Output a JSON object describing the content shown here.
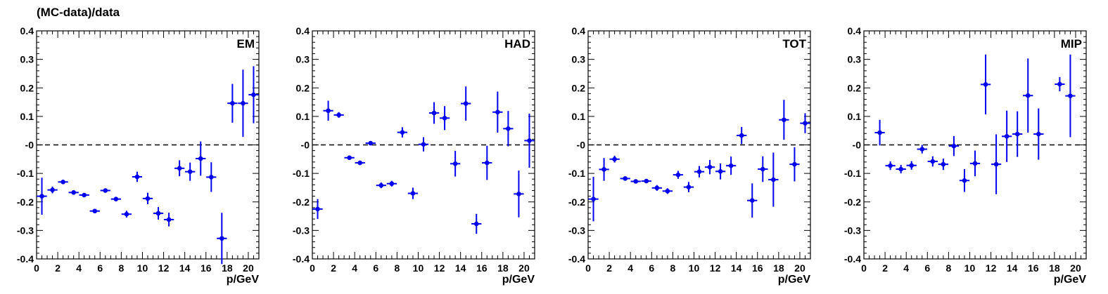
{
  "figure": {
    "ylabel": "(MC-data)/data",
    "xlabel": "p/GeV"
  },
  "colors": {
    "marker": "#0000ee",
    "axis": "#000000",
    "reference_line": "#000000"
  },
  "chart_data": [
    {
      "type": "scatter",
      "panel_label": "EM",
      "xlabel": "p/GeV",
      "ylabel": "(MC-data)/data",
      "xlim": [
        0,
        21
      ],
      "ylim": [
        -0.4,
        0.4
      ],
      "x_ticks": [
        "0",
        "2",
        "4",
        "6",
        "8",
        "10",
        "12",
        "14",
        "16",
        "18",
        "20"
      ],
      "y_ticks": [
        "-0.4",
        "-0.3",
        "-0.2",
        "-0.1",
        "-0",
        "0.1",
        "0.2",
        "0.3",
        "0.4"
      ],
      "reference_line": 0,
      "points": [
        {
          "x": 0.5,
          "y": -0.18,
          "err": 0.065
        },
        {
          "x": 1.5,
          "y": -0.158,
          "err": 0.012
        },
        {
          "x": 2.5,
          "y": -0.13,
          "err": 0.006
        },
        {
          "x": 3.5,
          "y": -0.167,
          "err": 0.006
        },
        {
          "x": 4.5,
          "y": -0.176,
          "err": 0.006
        },
        {
          "x": 5.5,
          "y": -0.232,
          "err": 0.005
        },
        {
          "x": 6.5,
          "y": -0.16,
          "err": 0.006
        },
        {
          "x": 7.5,
          "y": -0.19,
          "err": 0.008
        },
        {
          "x": 8.5,
          "y": -0.243,
          "err": 0.012
        },
        {
          "x": 9.5,
          "y": -0.112,
          "err": 0.018
        },
        {
          "x": 10.5,
          "y": -0.188,
          "err": 0.02
        },
        {
          "x": 11.5,
          "y": -0.24,
          "err": 0.022
        },
        {
          "x": 12.5,
          "y": -0.262,
          "err": 0.024
        },
        {
          "x": 13.5,
          "y": -0.082,
          "err": 0.028
        },
        {
          "x": 14.5,
          "y": -0.094,
          "err": 0.032
        },
        {
          "x": 15.5,
          "y": -0.048,
          "err": 0.06
        },
        {
          "x": 16.5,
          "y": -0.113,
          "err": 0.052
        },
        {
          "x": 17.5,
          "y": -0.328,
          "err": 0.09
        },
        {
          "x": 18.5,
          "y": 0.146,
          "err": 0.068
        },
        {
          "x": 19.5,
          "y": 0.146,
          "err": 0.118
        },
        {
          "x": 20.5,
          "y": 0.176,
          "err": 0.1
        }
      ]
    },
    {
      "type": "scatter",
      "panel_label": "HAD",
      "xlabel": "p/GeV",
      "ylabel": "(MC-data)/data",
      "xlim": [
        0,
        21
      ],
      "ylim": [
        -0.4,
        0.4
      ],
      "x_ticks": [
        "0",
        "2",
        "4",
        "6",
        "8",
        "10",
        "12",
        "14",
        "16",
        "18",
        "20"
      ],
      "y_ticks": [
        "-0.4",
        "-0.3",
        "-0.2",
        "-0.1",
        "-0",
        "0.1",
        "0.2",
        "0.3",
        "0.4"
      ],
      "reference_line": 0,
      "points": [
        {
          "x": 0.5,
          "y": -0.225,
          "err": 0.035
        },
        {
          "x": 1.5,
          "y": 0.12,
          "err": 0.035
        },
        {
          "x": 2.5,
          "y": 0.105,
          "err": 0.01
        },
        {
          "x": 3.5,
          "y": -0.045,
          "err": 0.006
        },
        {
          "x": 4.5,
          "y": -0.063,
          "err": 0.006
        },
        {
          "x": 5.5,
          "y": 0.006,
          "err": 0.005
        },
        {
          "x": 6.5,
          "y": -0.142,
          "err": 0.01
        },
        {
          "x": 7.5,
          "y": -0.136,
          "err": 0.01
        },
        {
          "x": 8.5,
          "y": 0.044,
          "err": 0.018
        },
        {
          "x": 9.5,
          "y": -0.17,
          "err": 0.02
        },
        {
          "x": 10.5,
          "y": 0.002,
          "err": 0.025
        },
        {
          "x": 11.5,
          "y": 0.112,
          "err": 0.038
        },
        {
          "x": 12.5,
          "y": 0.094,
          "err": 0.042
        },
        {
          "x": 13.5,
          "y": -0.066,
          "err": 0.045
        },
        {
          "x": 14.5,
          "y": 0.145,
          "err": 0.06
        },
        {
          "x": 15.5,
          "y": -0.277,
          "err": 0.035
        },
        {
          "x": 16.5,
          "y": -0.063,
          "err": 0.06
        },
        {
          "x": 17.5,
          "y": 0.115,
          "err": 0.072
        },
        {
          "x": 18.5,
          "y": 0.057,
          "err": 0.062
        },
        {
          "x": 19.5,
          "y": -0.172,
          "err": 0.082
        },
        {
          "x": 20.5,
          "y": 0.015,
          "err": 0.095
        }
      ]
    },
    {
      "type": "scatter",
      "panel_label": "TOT",
      "xlabel": "p/GeV",
      "ylabel": "(MC-data)/data",
      "xlim": [
        0,
        21
      ],
      "ylim": [
        -0.4,
        0.4
      ],
      "x_ticks": [
        "0",
        "2",
        "4",
        "6",
        "8",
        "10",
        "12",
        "14",
        "16",
        "18",
        "20"
      ],
      "y_ticks": [
        "-0.4",
        "-0.3",
        "-0.2",
        "-0.1",
        "-0",
        "0.1",
        "0.2",
        "0.3",
        "0.4"
      ],
      "reference_line": 0,
      "points": [
        {
          "x": 0.5,
          "y": -0.19,
          "err": 0.078
        },
        {
          "x": 1.5,
          "y": -0.086,
          "err": 0.04
        },
        {
          "x": 2.5,
          "y": -0.05,
          "err": 0.012
        },
        {
          "x": 3.5,
          "y": -0.118,
          "err": 0.006
        },
        {
          "x": 4.5,
          "y": -0.128,
          "err": 0.006
        },
        {
          "x": 5.5,
          "y": -0.127,
          "err": 0.005
        },
        {
          "x": 6.5,
          "y": -0.151,
          "err": 0.01
        },
        {
          "x": 7.5,
          "y": -0.162,
          "err": 0.01
        },
        {
          "x": 8.5,
          "y": -0.105,
          "err": 0.014
        },
        {
          "x": 9.5,
          "y": -0.148,
          "err": 0.018
        },
        {
          "x": 10.5,
          "y": -0.094,
          "err": 0.02
        },
        {
          "x": 11.5,
          "y": -0.078,
          "err": 0.025
        },
        {
          "x": 12.5,
          "y": -0.093,
          "err": 0.028
        },
        {
          "x": 13.5,
          "y": -0.073,
          "err": 0.032
        },
        {
          "x": 14.5,
          "y": 0.033,
          "err": 0.03
        },
        {
          "x": 15.5,
          "y": -0.195,
          "err": 0.06
        },
        {
          "x": 16.5,
          "y": -0.085,
          "err": 0.045
        },
        {
          "x": 17.5,
          "y": -0.122,
          "err": 0.095
        },
        {
          "x": 18.5,
          "y": 0.088,
          "err": 0.07
        },
        {
          "x": 19.5,
          "y": -0.068,
          "err": 0.06
        },
        {
          "x": 20.5,
          "y": 0.076,
          "err": 0.035
        }
      ]
    },
    {
      "type": "scatter",
      "panel_label": "MIP",
      "xlabel": "p/GeV",
      "ylabel": "(MC-data)/data",
      "xlim": [
        0,
        21
      ],
      "ylim": [
        -0.4,
        0.4
      ],
      "x_ticks": [
        "0",
        "2",
        "4",
        "6",
        "8",
        "10",
        "12",
        "14",
        "16",
        "18",
        "20"
      ],
      "y_ticks": [
        "-0.4",
        "-0.3",
        "-0.2",
        "-0.1",
        "-0",
        "0.1",
        "0.2",
        "0.3",
        "0.4"
      ],
      "reference_line": 0,
      "points": [
        {
          "x": 1.5,
          "y": 0.043,
          "err": 0.045
        },
        {
          "x": 2.5,
          "y": -0.073,
          "err": 0.015
        },
        {
          "x": 3.5,
          "y": -0.085,
          "err": 0.015
        },
        {
          "x": 4.5,
          "y": -0.072,
          "err": 0.015
        },
        {
          "x": 5.5,
          "y": -0.015,
          "err": 0.015
        },
        {
          "x": 6.5,
          "y": -0.058,
          "err": 0.018
        },
        {
          "x": 7.5,
          "y": -0.068,
          "err": 0.02
        },
        {
          "x": 8.5,
          "y": -0.004,
          "err": 0.035
        },
        {
          "x": 9.5,
          "y": -0.125,
          "err": 0.04
        },
        {
          "x": 10.5,
          "y": -0.065,
          "err": 0.045
        },
        {
          "x": 11.5,
          "y": 0.212,
          "err": 0.105
        },
        {
          "x": 12.5,
          "y": -0.068,
          "err": 0.105
        },
        {
          "x": 13.5,
          "y": 0.03,
          "err": 0.09
        },
        {
          "x": 14.5,
          "y": 0.038,
          "err": 0.08
        },
        {
          "x": 15.5,
          "y": 0.173,
          "err": 0.13
        },
        {
          "x": 16.5,
          "y": 0.038,
          "err": 0.09
        },
        {
          "x": 18.5,
          "y": 0.213,
          "err": 0.025
        },
        {
          "x": 19.5,
          "y": 0.172,
          "err": 0.145
        }
      ]
    }
  ]
}
